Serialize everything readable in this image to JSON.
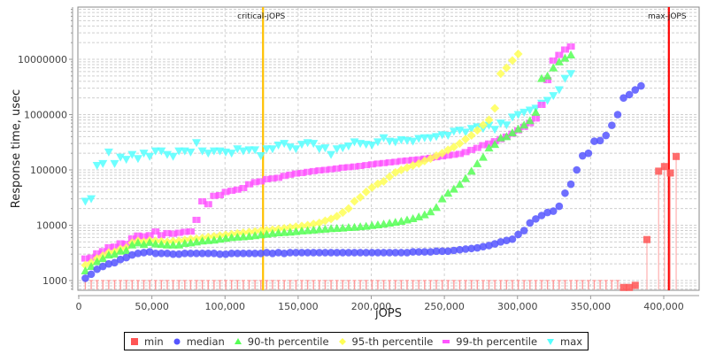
{
  "chart_data": {
    "type": "scatter",
    "title": "",
    "xlabel": "jOPS",
    "ylabel": "Response time, usec",
    "xlim": [
      0,
      418000
    ],
    "ylim": [
      600,
      50000000
    ],
    "yscale": "log",
    "grid": true,
    "legend_position": "bottom",
    "x_ticks": [
      "0",
      "50,000",
      "100,000",
      "150,000",
      "200,000",
      "250,000",
      "300,000",
      "350,000",
      "400,000"
    ],
    "y_ticks": [
      "1000",
      "10000",
      "100000",
      "1000000",
      "10000000"
    ],
    "markers": [
      {
        "label": "critical-jOPS",
        "x": 126000,
        "color": "#ffc000"
      },
      {
        "label": "max-jOPS",
        "x": 403500,
        "color": "#ff0000"
      }
    ],
    "x": [
      4500,
      8500,
      12500,
      16500,
      20500,
      24500,
      28500,
      32500,
      36500,
      40500,
      44500,
      48500,
      52500,
      56500,
      60500,
      64500,
      68500,
      72500,
      76500,
      80500,
      84500,
      88500,
      92500,
      96500,
      100500,
      104500,
      108500,
      112500,
      116500,
      120500,
      124500,
      128500,
      132500,
      136500,
      140500,
      144500,
      148500,
      152500,
      156500,
      160500,
      164500,
      168500,
      172500,
      176500,
      180500,
      184500,
      188500,
      192500,
      196500,
      200500,
      204500,
      208500,
      212500,
      216500,
      220500,
      224500,
      228500,
      232500,
      236500,
      240500,
      244500,
      248500,
      252500,
      256500,
      260500,
      264500,
      268500,
      272500,
      276500,
      280500,
      284500,
      288500,
      292500,
      296500,
      300500,
      304500,
      308500,
      312500,
      316500,
      320500,
      324500,
      328500,
      332500,
      336500,
      340500,
      344500,
      348500,
      352500,
      356500,
      360500,
      364500,
      368500,
      372500,
      376500,
      380500,
      384500,
      388500,
      392500,
      396500,
      400500,
      404500,
      408500,
      412500,
      416500
    ],
    "series": [
      {
        "name": "min",
        "color": "#ff5555",
        "symbol": "square",
        "values": [
          1000,
          1000,
          1000,
          1000,
          1000,
          1000,
          1000,
          1000,
          1000,
          1000,
          1000,
          1000,
          1000,
          1000,
          1000,
          1000,
          1000,
          1000,
          1000,
          1000,
          1000,
          1000,
          1000,
          1000,
          1000,
          1000,
          1000,
          1000,
          1000,
          1000,
          1000,
          1000,
          1000,
          1000,
          1000,
          1000,
          1000,
          1000,
          1000,
          1000,
          1000,
          1000,
          1000,
          1000,
          1000,
          1000,
          1000,
          1000,
          1000,
          1000,
          1000,
          1000,
          1000,
          1000,
          1000,
          1000,
          1000,
          1000,
          1000,
          1000,
          1000,
          1000,
          1000,
          1000,
          1000,
          1000,
          1000,
          1000,
          1000,
          1000,
          1000,
          1000,
          1000,
          1000,
          1000,
          1000,
          1000,
          1000,
          1000,
          1000,
          1000,
          1000,
          1000,
          1000,
          1000,
          1000,
          1000,
          1000,
          1000,
          1000,
          1000,
          1000,
          750,
          750,
          820,
          null,
          5500,
          null,
          95000,
          115000,
          88000,
          175000,
          null,
          null
        ]
      },
      {
        "name": "median",
        "color": "#5555ff",
        "symbol": "circle",
        "values": [
          1100,
          1300,
          1600,
          1800,
          2000,
          2100,
          2400,
          2600,
          2900,
          3100,
          3200,
          3300,
          3100,
          3100,
          3100,
          3000,
          3000,
          3100,
          3100,
          3100,
          3100,
          3100,
          3100,
          3000,
          3000,
          3100,
          3100,
          3100,
          3100,
          3100,
          3100,
          3200,
          3100,
          3200,
          3100,
          3200,
          3200,
          3200,
          3200,
          3200,
          3200,
          3200,
          3200,
          3200,
          3200,
          3200,
          3200,
          3200,
          3200,
          3200,
          3200,
          3200,
          3200,
          3200,
          3200,
          3200,
          3300,
          3300,
          3300,
          3300,
          3400,
          3400,
          3400,
          3500,
          3600,
          3700,
          3800,
          3900,
          4100,
          4300,
          4600,
          5000,
          5300,
          5600,
          6800,
          8000,
          11000,
          13000,
          15000,
          17000,
          18000,
          22000,
          38000,
          55000,
          100000,
          180000,
          200000,
          330000,
          340000,
          420000,
          640000,
          1000000,
          2000000,
          2300000,
          2800000,
          3300000,
          null,
          null,
          null,
          null,
          null,
          null,
          null,
          null
        ]
      },
      {
        "name": "90-th percentile",
        "color": "#55ff55",
        "symbol": "triangle-up",
        "values": [
          1500,
          1800,
          2200,
          2500,
          2900,
          3000,
          3400,
          3500,
          4400,
          4800,
          4500,
          4900,
          4600,
          4500,
          4400,
          4400,
          4400,
          4700,
          4800,
          5000,
          5200,
          5300,
          5400,
          5600,
          5800,
          6000,
          6100,
          6200,
          6300,
          6500,
          6700,
          6900,
          7100,
          7300,
          7400,
          7500,
          7700,
          7900,
          8000,
          8200,
          8400,
          8500,
          8700,
          8800,
          8900,
          9100,
          9200,
          9400,
          9600,
          9900,
          10200,
          10500,
          10900,
          11300,
          11800,
          12500,
          13200,
          14200,
          15500,
          17500,
          21000,
          30000,
          38000,
          45000,
          55000,
          70000,
          95000,
          130000,
          170000,
          250000,
          290000,
          380000,
          400000,
          470000,
          550000,
          650000,
          780000,
          1100000,
          4500000,
          5000000,
          7000000,
          9000000,
          10500000,
          12000000,
          null,
          null,
          null,
          null,
          null,
          null,
          null,
          null,
          null,
          null,
          null,
          null,
          null,
          null,
          null,
          null,
          null,
          null,
          null,
          null
        ]
      },
      {
        "name": "95-th percentile",
        "color": "#ffff55",
        "symbol": "diamond",
        "values": [
          1900,
          2100,
          2500,
          2800,
          3200,
          3300,
          3700,
          3900,
          4800,
          5200,
          5000,
          5300,
          5200,
          5100,
          5000,
          5100,
          5200,
          5400,
          5600,
          5700,
          5900,
          6100,
          6300,
          6500,
          6700,
          6900,
          7100,
          7300,
          7500,
          7700,
          7900,
          8100,
          8300,
          8500,
          8800,
          9100,
          9400,
          9700,
          10000,
          10500,
          11000,
          12000,
          13000,
          14500,
          17000,
          20000,
          27000,
          32000,
          40000,
          48000,
          56000,
          62000,
          75000,
          90000,
          100000,
          110000,
          120000,
          130000,
          145000,
          160000,
          180000,
          200000,
          230000,
          260000,
          300000,
          360000,
          420000,
          520000,
          650000,
          800000,
          1300000,
          5500000,
          7000000,
          9500000,
          12500000,
          null,
          null,
          null,
          null,
          null,
          null,
          null,
          null,
          null,
          null,
          null,
          null,
          null,
          null,
          null,
          null,
          null,
          null,
          null,
          null,
          null,
          null,
          null,
          null,
          null,
          null,
          null,
          null,
          null
        ]
      },
      {
        "name": "99-th percentile",
        "color": "#ff55ff",
        "symbol": "plus-square",
        "values": [
          2500,
          2600,
          3100,
          3400,
          4000,
          4100,
          4700,
          4600,
          5800,
          6500,
          6300,
          6600,
          7700,
          6600,
          7200,
          7000,
          7300,
          7600,
          7700,
          12500,
          27000,
          24000,
          34000,
          35000,
          40000,
          42000,
          44000,
          47000,
          55000,
          60000,
          62000,
          68000,
          70000,
          72000,
          78000,
          82000,
          86000,
          88000,
          92000,
          95000,
          98000,
          100000,
          103000,
          106000,
          110000,
          112000,
          115000,
          118000,
          122000,
          126000,
          130000,
          133000,
          137000,
          140000,
          145000,
          148000,
          152000,
          155000,
          160000,
          165000,
          170000,
          176000,
          182000,
          188000,
          195000,
          210000,
          230000,
          250000,
          280000,
          300000,
          330000,
          360000,
          400000,
          450000,
          520000,
          600000,
          700000,
          850000,
          1500000,
          4200000,
          9500000,
          12000000,
          15000000,
          17000000,
          null,
          null,
          null,
          null,
          null,
          null,
          null,
          null,
          null,
          null,
          null,
          null,
          null,
          null,
          null,
          null,
          null,
          null,
          null,
          null
        ]
      },
      {
        "name": "max",
        "color": "#55ffff",
        "symbol": "triangle-down",
        "values": [
          27000,
          30000,
          120000,
          130000,
          210000,
          130000,
          170000,
          155000,
          190000,
          160000,
          200000,
          175000,
          220000,
          220000,
          190000,
          175000,
          220000,
          220000,
          210000,
          310000,
          220000,
          200000,
          220000,
          220000,
          210000,
          200000,
          240000,
          220000,
          230000,
          230000,
          180000,
          240000,
          240000,
          280000,
          300000,
          260000,
          240000,
          290000,
          310000,
          300000,
          240000,
          250000,
          190000,
          240000,
          250000,
          270000,
          320000,
          300000,
          290000,
          280000,
          320000,
          380000,
          330000,
          320000,
          350000,
          340000,
          330000,
          370000,
          380000,
          380000,
          400000,
          430000,
          420000,
          500000,
          520000,
          480000,
          560000,
          600000,
          560000,
          640000,
          540000,
          700000,
          650000,
          900000,
          1000000,
          1100000,
          1200000,
          1300000,
          1600000,
          1800000,
          2200000,
          2800000,
          4500000,
          5500000,
          null,
          null,
          null,
          null,
          null,
          null,
          null,
          null,
          null,
          null,
          null,
          null,
          null,
          null,
          null,
          null,
          null,
          null,
          null,
          null
        ]
      }
    ]
  },
  "legend": {
    "items": [
      {
        "label": "min",
        "color": "#ff5555",
        "symbol": "square"
      },
      {
        "label": "median",
        "color": "#5555ff",
        "symbol": "circle"
      },
      {
        "label": "90-th percentile",
        "color": "#55ff55",
        "symbol": "triangle-up"
      },
      {
        "label": "95-th percentile",
        "color": "#ffff55",
        "symbol": "diamond"
      },
      {
        "label": "99-th percentile",
        "color": "#ff55ff",
        "symbol": "plus-square"
      },
      {
        "label": "max",
        "color": "#55ffff",
        "symbol": "triangle-down"
      }
    ]
  }
}
